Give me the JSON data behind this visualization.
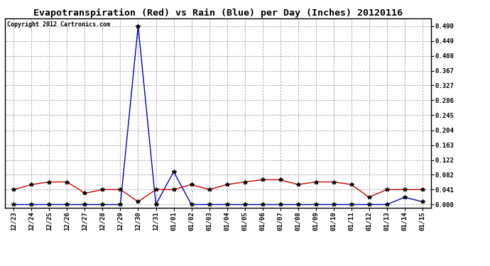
{
  "title": "Evapotranspiration (Red) vs Rain (Blue) per Day (Inches) 20120116",
  "copyright": "Copyright 2012 Cartronics.com",
  "x_labels": [
    "12/23",
    "12/24",
    "12/25",
    "12/26",
    "12/27",
    "12/28",
    "12/29",
    "12/30",
    "12/31",
    "01/01",
    "01/02",
    "01/03",
    "01/04",
    "01/05",
    "01/06",
    "01/07",
    "01/08",
    "01/09",
    "01/10",
    "01/11",
    "01/12",
    "01/13",
    "01/14",
    "01/15"
  ],
  "rain_blue": [
    0.0,
    0.0,
    0.0,
    0.0,
    0.0,
    0.0,
    0.0,
    0.49,
    0.0,
    0.09,
    0.0,
    0.0,
    0.0,
    0.0,
    0.0,
    0.0,
    0.0,
    0.0,
    0.0,
    0.0,
    0.0,
    0.0,
    0.02,
    0.008
  ],
  "et_red": [
    0.041,
    0.055,
    0.062,
    0.062,
    0.031,
    0.041,
    0.041,
    0.008,
    0.041,
    0.041,
    0.055,
    0.041,
    0.055,
    0.062,
    0.068,
    0.068,
    0.055,
    0.062,
    0.062,
    0.055,
    0.02,
    0.041,
    0.041,
    0.041
  ],
  "yticks": [
    0.0,
    0.041,
    0.082,
    0.122,
    0.163,
    0.204,
    0.245,
    0.286,
    0.327,
    0.367,
    0.408,
    0.449,
    0.49
  ],
  "bg_color": "#ffffff",
  "plot_bg": "#ffffff",
  "grid_color": "#aaaaaa",
  "blue_color": "#0000bb",
  "red_color": "#cc0000",
  "title_fontsize": 9.5,
  "tick_fontsize": 6.5,
  "copyright_fontsize": 6.0
}
